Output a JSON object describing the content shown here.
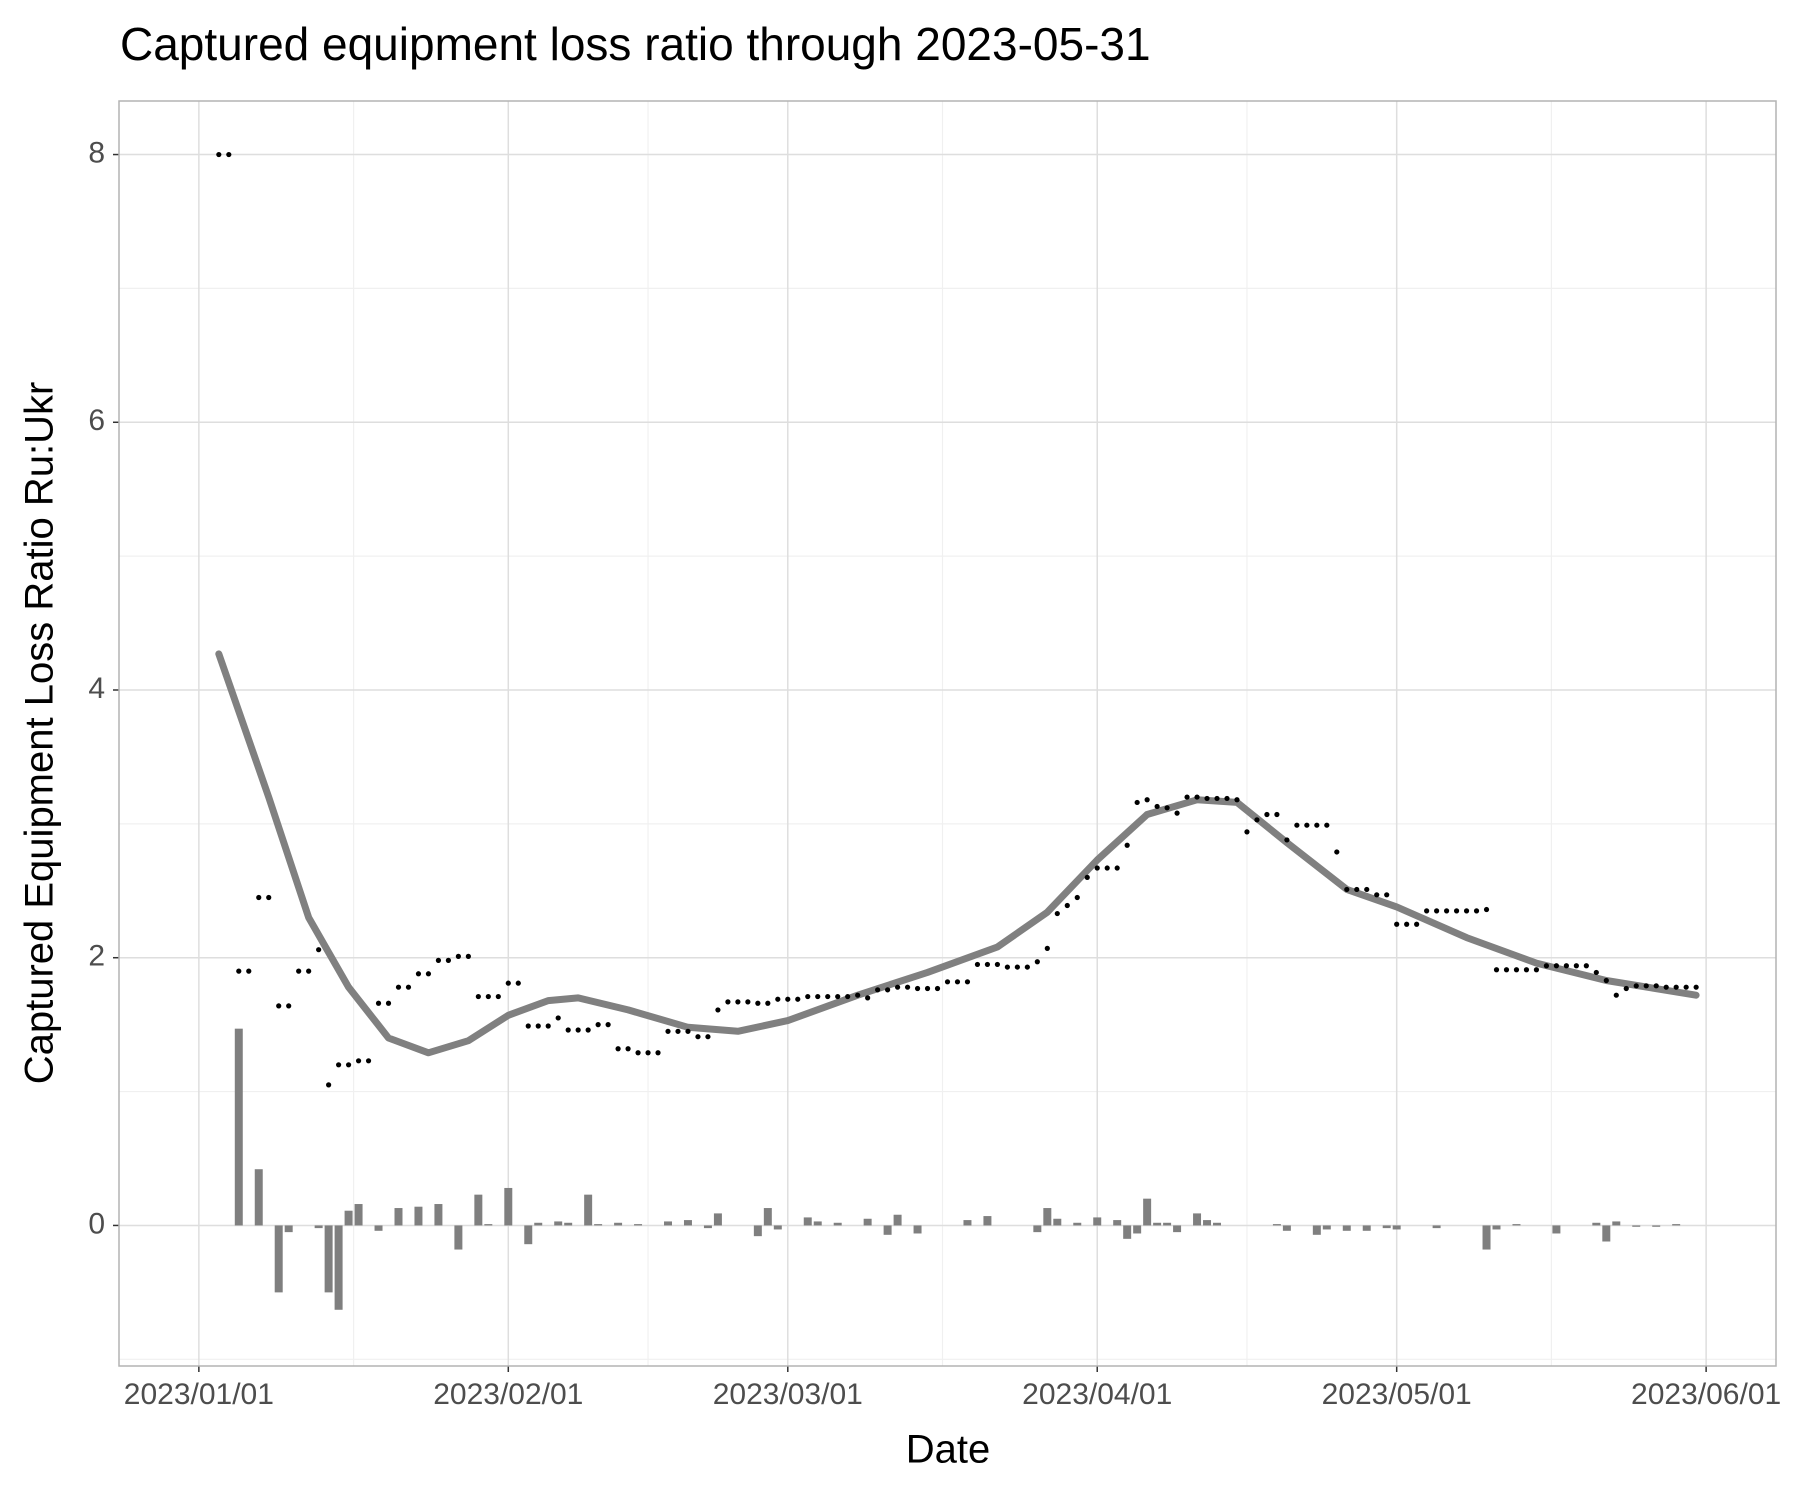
{
  "chart_data": {
    "type": "scatter",
    "title": "Captured equipment loss ratio through 2023-05-31",
    "x_label": "Date",
    "y_label": "Captured Equipment Loss Ratio Ru:Ukr",
    "xlim": [
      "2022-12-24",
      "2023-06-08"
    ],
    "xticks": [
      {
        "value": "2023-01-01",
        "label": "2023/01/01"
      },
      {
        "value": "2023-02-01",
        "label": "2023/02/01"
      },
      {
        "value": "2023-03-01",
        "label": "2023/03/01"
      },
      {
        "value": "2023-04-01",
        "label": "2023/04/01"
      },
      {
        "value": "2023-05-01",
        "label": "2023/05/01"
      },
      {
        "value": "2023-06-01",
        "label": "2023/06/01"
      }
    ],
    "ylim": [
      -1.05,
      8.4
    ],
    "yticks": [
      0,
      2,
      4,
      6,
      8
    ],
    "grid": true,
    "points": {
      "color": "#000000",
      "x": [
        "2023-01-03",
        "2023-01-04",
        "2023-01-05",
        "2023-01-06",
        "2023-01-07",
        "2023-01-08",
        "2023-01-09",
        "2023-01-10",
        "2023-01-11",
        "2023-01-12",
        "2023-01-13",
        "2023-01-14",
        "2023-01-15",
        "2023-01-16",
        "2023-01-17",
        "2023-01-18",
        "2023-01-19",
        "2023-01-20",
        "2023-01-21",
        "2023-01-22",
        "2023-01-23",
        "2023-01-24",
        "2023-01-25",
        "2023-01-26",
        "2023-01-27",
        "2023-01-28",
        "2023-01-29",
        "2023-01-30",
        "2023-01-31",
        "2023-02-01",
        "2023-02-02",
        "2023-02-03",
        "2023-02-04",
        "2023-02-05",
        "2023-02-06",
        "2023-02-07",
        "2023-02-08",
        "2023-02-09",
        "2023-02-10",
        "2023-02-11",
        "2023-02-12",
        "2023-02-13",
        "2023-02-14",
        "2023-02-15",
        "2023-02-16",
        "2023-02-17",
        "2023-02-18",
        "2023-02-19",
        "2023-02-20",
        "2023-02-21",
        "2023-02-22",
        "2023-02-23",
        "2023-02-24",
        "2023-02-25",
        "2023-02-26",
        "2023-02-27",
        "2023-02-28",
        "2023-03-01",
        "2023-03-02",
        "2023-03-03",
        "2023-03-04",
        "2023-03-05",
        "2023-03-06",
        "2023-03-07",
        "2023-03-08",
        "2023-03-09",
        "2023-03-10",
        "2023-03-11",
        "2023-03-12",
        "2023-03-13",
        "2023-03-14",
        "2023-03-15",
        "2023-03-16",
        "2023-03-17",
        "2023-03-18",
        "2023-03-19",
        "2023-03-20",
        "2023-03-21",
        "2023-03-22",
        "2023-03-23",
        "2023-03-24",
        "2023-03-25",
        "2023-03-26",
        "2023-03-27",
        "2023-03-28",
        "2023-03-29",
        "2023-03-30",
        "2023-03-31",
        "2023-04-01",
        "2023-04-02",
        "2023-04-03",
        "2023-04-04",
        "2023-04-05",
        "2023-04-06",
        "2023-04-07",
        "2023-04-08",
        "2023-04-09",
        "2023-04-10",
        "2023-04-11",
        "2023-04-12",
        "2023-04-13",
        "2023-04-14",
        "2023-04-15",
        "2023-04-16",
        "2023-04-17",
        "2023-04-18",
        "2023-04-19",
        "2023-04-20",
        "2023-04-21",
        "2023-04-22",
        "2023-04-23",
        "2023-04-24",
        "2023-04-25",
        "2023-04-26",
        "2023-04-27",
        "2023-04-28",
        "2023-04-29",
        "2023-04-30",
        "2023-05-01",
        "2023-05-02",
        "2023-05-03",
        "2023-05-04",
        "2023-05-05",
        "2023-05-06",
        "2023-05-07",
        "2023-05-08",
        "2023-05-09",
        "2023-05-10",
        "2023-05-11",
        "2023-05-12",
        "2023-05-13",
        "2023-05-14",
        "2023-05-15",
        "2023-05-16",
        "2023-05-17",
        "2023-05-18",
        "2023-05-19",
        "2023-05-20",
        "2023-05-21",
        "2023-05-22",
        "2023-05-23",
        "2023-05-24",
        "2023-05-25",
        "2023-05-26",
        "2023-05-27",
        "2023-05-28",
        "2023-05-29",
        "2023-05-30",
        "2023-05-31"
      ],
      "values": [
        8,
        8,
        1.9,
        1.9,
        2.45,
        2.45,
        1.64,
        1.64,
        1.9,
        1.9,
        2.06,
        1.05,
        1.2,
        1.2,
        1.23,
        1.23,
        1.66,
        1.66,
        1.78,
        1.78,
        1.88,
        1.88,
        1.98,
        1.98,
        2.01,
        2.01,
        1.71,
        1.71,
        1.71,
        1.81,
        1.81,
        1.49,
        1.49,
        1.49,
        1.55,
        1.46,
        1.46,
        1.46,
        1.5,
        1.5,
        1.32,
        1.32,
        1.29,
        1.29,
        1.29,
        1.45,
        1.45,
        1.45,
        1.41,
        1.41,
        1.61,
        1.67,
        1.67,
        1.67,
        1.66,
        1.66,
        1.69,
        1.69,
        1.69,
        1.71,
        1.71,
        1.71,
        1.71,
        1.71,
        1.72,
        1.7,
        1.76,
        1.76,
        1.78,
        1.78,
        1.77,
        1.77,
        1.77,
        1.82,
        1.82,
        1.82,
        1.95,
        1.95,
        1.95,
        1.93,
        1.93,
        1.93,
        1.97,
        2.07,
        2.33,
        2.39,
        2.45,
        2.6,
        2.67,
        2.67,
        2.67,
        2.84,
        3.16,
        3.18,
        3.13,
        3.12,
        3.08,
        3.2,
        3.2,
        3.19,
        3.19,
        3.19,
        3.18,
        2.94,
        3.03,
        3.07,
        3.07,
        2.88,
        2.99,
        2.99,
        2.99,
        2.99,
        2.79,
        2.51,
        2.51,
        2.51,
        2.47,
        2.47,
        2.25,
        2.25,
        2.25,
        2.35,
        2.35,
        2.35,
        2.35,
        2.35,
        2.35,
        2.36,
        1.91,
        1.91,
        1.91,
        1.91,
        1.91,
        1.94,
        1.94,
        1.94,
        1.94,
        1.94,
        1.89,
        1.83,
        1.72,
        1.77,
        1.79,
        1.79,
        1.79,
        1.78,
        1.78,
        1.78,
        1.78
      ]
    },
    "bars": {
      "color": "#7f7f7f",
      "x": [
        "2023-01-05",
        "2023-01-07",
        "2023-01-09",
        "2023-01-10",
        "2023-01-13",
        "2023-01-14",
        "2023-01-15",
        "2023-01-16",
        "2023-01-17",
        "2023-01-19",
        "2023-01-21",
        "2023-01-23",
        "2023-01-25",
        "2023-01-27",
        "2023-01-29",
        "2023-01-30",
        "2023-02-01",
        "2023-02-03",
        "2023-02-04",
        "2023-02-06",
        "2023-02-07",
        "2023-02-09",
        "2023-02-10",
        "2023-02-12",
        "2023-02-14",
        "2023-02-17",
        "2023-02-19",
        "2023-02-21",
        "2023-02-22",
        "2023-02-26",
        "2023-02-27",
        "2023-02-28",
        "2023-03-03",
        "2023-03-04",
        "2023-03-06",
        "2023-03-09",
        "2023-03-11",
        "2023-03-12",
        "2023-03-14",
        "2023-03-19",
        "2023-03-21",
        "2023-03-26",
        "2023-03-27",
        "2023-03-28",
        "2023-03-30",
        "2023-04-01",
        "2023-04-03",
        "2023-04-04",
        "2023-04-05",
        "2023-04-06",
        "2023-04-07",
        "2023-04-08",
        "2023-04-09",
        "2023-04-11",
        "2023-04-12",
        "2023-04-13",
        "2023-04-19",
        "2023-04-20",
        "2023-04-23",
        "2023-04-24",
        "2023-04-26",
        "2023-04-28",
        "2023-04-30",
        "2023-05-01",
        "2023-05-05",
        "2023-05-10",
        "2023-05-11",
        "2023-05-13",
        "2023-05-17",
        "2023-05-21",
        "2023-05-22",
        "2023-05-23",
        "2023-05-25",
        "2023-05-27",
        "2023-05-29"
      ],
      "values": [
        1.47,
        0.42,
        -0.5,
        -0.05,
        -0.02,
        -0.5,
        -0.63,
        0.11,
        0.16,
        -0.04,
        0.13,
        0.14,
        0.16,
        -0.18,
        0.23,
        0.01,
        0.28,
        -0.14,
        0.02,
        0.03,
        0.02,
        0.23,
        0.01,
        0.02,
        0.01,
        0.03,
        0.04,
        -0.02,
        0.09,
        -0.08,
        0.13,
        -0.03,
        0.06,
        0.03,
        0.02,
        0.05,
        -0.07,
        0.08,
        -0.06,
        0.04,
        0.07,
        -0.05,
        0.13,
        0.05,
        0.02,
        0.06,
        0.04,
        -0.1,
        -0.06,
        0.2,
        0.02,
        0.02,
        -0.05,
        0.09,
        0.04,
        0.02,
        0.01,
        -0.04,
        -0.07,
        -0.03,
        -0.04,
        -0.04,
        -0.02,
        -0.03,
        -0.02,
        -0.18,
        -0.03,
        0.01,
        -0.06,
        0.02,
        -0.12,
        0.03,
        -0.01,
        -0.01,
        0.01
      ]
    },
    "smooth": {
      "color": "#808080",
      "x": [
        "2023-01-03",
        "2023-01-08",
        "2023-01-12",
        "2023-01-16",
        "2023-01-20",
        "2023-01-24",
        "2023-01-28",
        "2023-02-01",
        "2023-02-05",
        "2023-02-08",
        "2023-02-13",
        "2023-02-19",
        "2023-02-24",
        "2023-03-01",
        "2023-03-08",
        "2023-03-15",
        "2023-03-22",
        "2023-03-27",
        "2023-04-01",
        "2023-04-06",
        "2023-04-11",
        "2023-04-15",
        "2023-04-20",
        "2023-04-26",
        "2023-05-01",
        "2023-05-08",
        "2023-05-15",
        "2023-05-22",
        "2023-05-31"
      ],
      "values": [
        4.27,
        3.2,
        2.3,
        1.78,
        1.4,
        1.29,
        1.38,
        1.57,
        1.68,
        1.7,
        1.61,
        1.48,
        1.45,
        1.53,
        1.72,
        1.89,
        2.08,
        2.34,
        2.73,
        3.07,
        3.18,
        3.16,
        2.86,
        2.51,
        2.38,
        2.15,
        1.96,
        1.83,
        1.72
      ]
    }
  }
}
